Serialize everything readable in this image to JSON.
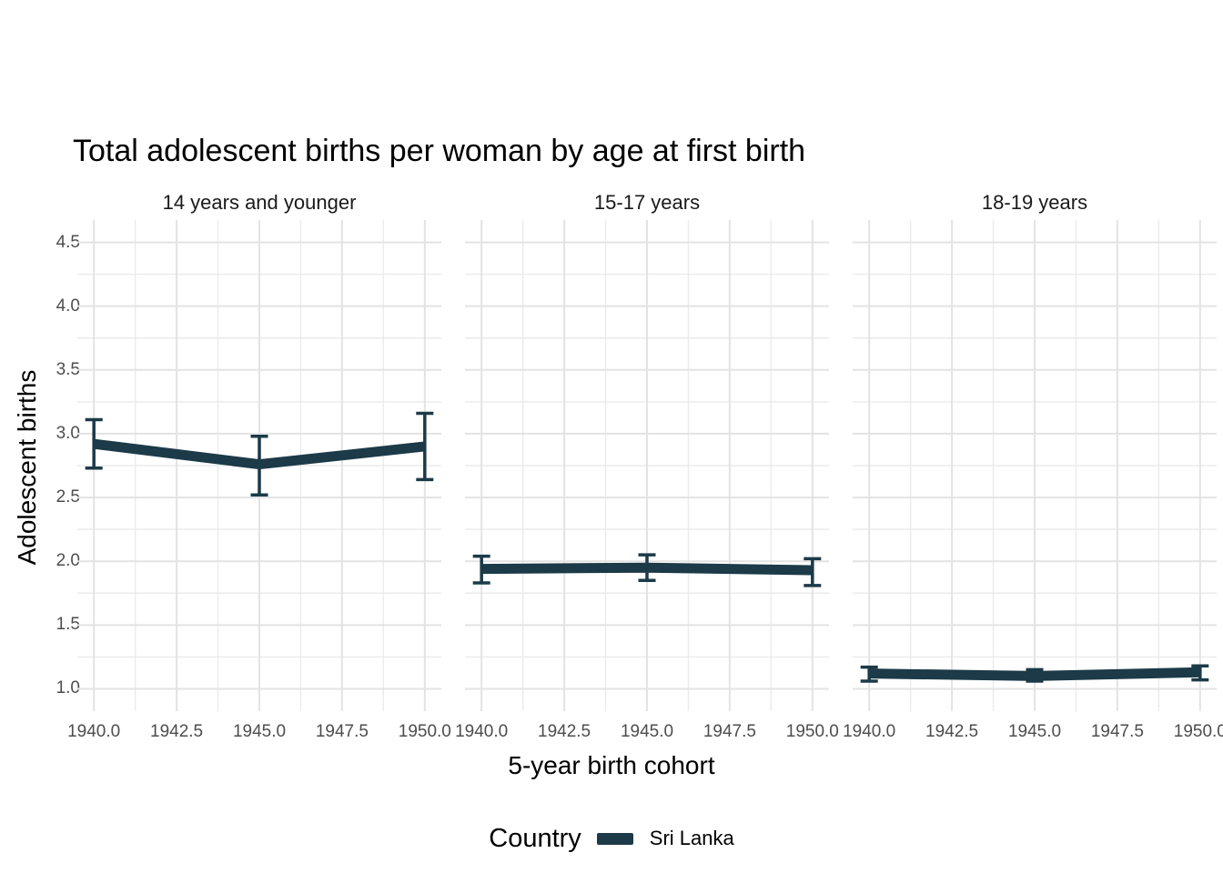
{
  "chart_data": {
    "type": "line",
    "title": "Total adolescent births per woman by age at first birth",
    "xlabel": "5-year birth cohort",
    "ylabel": "Adolescent births",
    "grid": true,
    "legend": {
      "position": "bottom",
      "title": "Country",
      "entries": [
        {
          "label": "Sri Lanka",
          "color": "#1c3a48"
        }
      ]
    },
    "line_color": "#1c3a48",
    "x_domain": [
      1939.5,
      1950.5
    ],
    "y_domain": [
      0.825,
      4.675
    ],
    "x_ticks": [
      1940.0,
      1942.5,
      1945.0,
      1947.5,
      1950.0
    ],
    "x_tick_labels": [
      "1940.0",
      "1942.5",
      "1945.0",
      "1947.5",
      "1950.0"
    ],
    "x_minor": [
      1941.25,
      1943.75,
      1946.25,
      1948.75
    ],
    "y_ticks": [
      1.0,
      1.5,
      2.0,
      2.5,
      3.0,
      3.5,
      4.0,
      4.5
    ],
    "y_tick_labels": [
      "1.0",
      "1.5",
      "2.0",
      "2.5",
      "3.0",
      "3.5",
      "4.0",
      "4.5"
    ],
    "y_minor": [
      1.25,
      1.75,
      2.25,
      2.75,
      3.25,
      3.75,
      4.25
    ],
    "facets": [
      {
        "label": "14 years and younger",
        "points": [
          {
            "x": 1940,
            "y": 2.92,
            "ymin": 2.73,
            "ymax": 3.11
          },
          {
            "x": 1945,
            "y": 2.76,
            "ymin": 2.52,
            "ymax": 2.98
          },
          {
            "x": 1950,
            "y": 2.9,
            "ymin": 2.64,
            "ymax": 3.16
          }
        ]
      },
      {
        "label": "15-17 years",
        "points": [
          {
            "x": 1940,
            "y": 1.94,
            "ymin": 1.83,
            "ymax": 2.04
          },
          {
            "x": 1945,
            "y": 1.95,
            "ymin": 1.85,
            "ymax": 2.05
          },
          {
            "x": 1950,
            "y": 1.93,
            "ymin": 1.81,
            "ymax": 2.02
          }
        ]
      },
      {
        "label": "18-19 years",
        "points": [
          {
            "x": 1940,
            "y": 1.12,
            "ymin": 1.06,
            "ymax": 1.17
          },
          {
            "x": 1945,
            "y": 1.1,
            "ymin": 1.06,
            "ymax": 1.15
          },
          {
            "x": 1950,
            "y": 1.13,
            "ymin": 1.07,
            "ymax": 1.18
          }
        ]
      }
    ]
  },
  "colors": {
    "background": "#ffffff",
    "grid_major": "#e3e3e3",
    "grid_minor": "#ebebeb",
    "tick_text": "#4d4d4d",
    "title_text": "#000000"
  }
}
